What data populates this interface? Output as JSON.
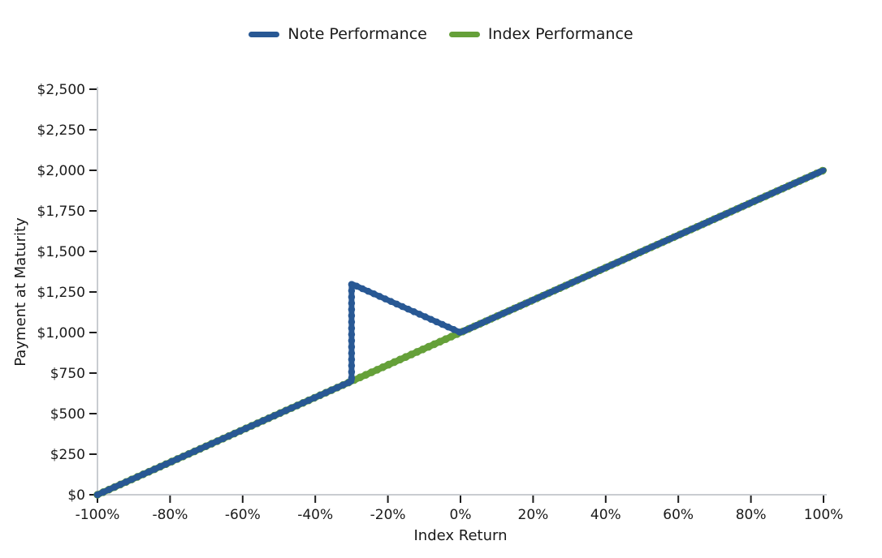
{
  "figure": {
    "background": "#ffffff"
  },
  "legend": {
    "items": [
      {
        "label": "Note Performance",
        "color": "#285894"
      },
      {
        "label": "Index Performance",
        "color": "#65a039"
      }
    ]
  },
  "chart_data": {
    "type": "line",
    "title": "",
    "xlabel": "Index Return",
    "ylabel": "Payment at Maturity",
    "xlim": [
      -100,
      100
    ],
    "ylim": [
      0,
      2500
    ],
    "grid": false,
    "legend_position": "top-center",
    "x_ticks": [
      {
        "value": -100,
        "label": "-100%"
      },
      {
        "value": -80,
        "label": "-80%"
      },
      {
        "value": -60,
        "label": "-60%"
      },
      {
        "value": -40,
        "label": "-40%"
      },
      {
        "value": -20,
        "label": "-20%"
      },
      {
        "value": 0,
        "label": "0%"
      },
      {
        "value": 20,
        "label": "20%"
      },
      {
        "value": 40,
        "label": "40%"
      },
      {
        "value": 60,
        "label": "60%"
      },
      {
        "value": 80,
        "label": "80%"
      },
      {
        "value": 100,
        "label": "100%"
      }
    ],
    "y_ticks": [
      {
        "value": 0,
        "label": "$0"
      },
      {
        "value": 250,
        "label": "$250"
      },
      {
        "value": 500,
        "label": "$500"
      },
      {
        "value": 750,
        "label": "$750"
      },
      {
        "value": 1000,
        "label": "$1,000"
      },
      {
        "value": 1250,
        "label": "$1,250"
      },
      {
        "value": 1500,
        "label": "$1,500"
      },
      {
        "value": 1750,
        "label": "$1,750"
      },
      {
        "value": 2000,
        "label": "$2,000"
      },
      {
        "value": 2250,
        "label": "$2,250"
      },
      {
        "value": 2500,
        "label": "$2,500"
      }
    ],
    "series": [
      {
        "name": "Index Performance",
        "color": "#65a039",
        "points": [
          [
            -100,
            0
          ],
          [
            100,
            2000
          ]
        ]
      },
      {
        "name": "Note Performance",
        "color": "#285894",
        "points": [
          [
            -100,
            0
          ],
          [
            -30,
            700
          ],
          [
            -30,
            1300
          ],
          [
            0,
            1000
          ],
          [
            100,
            2000
          ]
        ]
      }
    ],
    "axis_colors": {
      "spine": "#c9ccd1",
      "tick": "#1c1c1c",
      "text": "#1a1a1a"
    }
  }
}
